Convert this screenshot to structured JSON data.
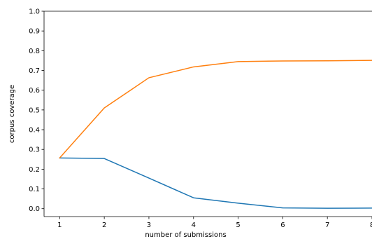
{
  "chart_data": {
    "type": "line",
    "title": "",
    "xlabel": "number of submissions",
    "ylabel": "corpus coverage",
    "xlim": [
      0.65,
      8.0
    ],
    "ylim": [
      -0.04,
      1.0
    ],
    "xticks": [
      1,
      2,
      3,
      4,
      5,
      6,
      7,
      8
    ],
    "xtick_labels": [
      "1",
      "2",
      "3",
      "4",
      "5",
      "6",
      "7",
      "8"
    ],
    "yticks": [
      0.0,
      0.1,
      0.2,
      0.3,
      0.4,
      0.5,
      0.6,
      0.7,
      0.8,
      0.9,
      1.0
    ],
    "ytick_labels": [
      "0.0",
      "0.1",
      "0.2",
      "0.3",
      "0.4",
      "0.5",
      "0.6",
      "0.7",
      "0.8",
      "0.9",
      "1.0"
    ],
    "grid": false,
    "legend": "none",
    "x": [
      1,
      2,
      3,
      4,
      5,
      6,
      7,
      8
    ],
    "series": [
      {
        "color": "#1f77b4",
        "values": [
          0.257,
          0.254,
          0.155,
          0.055,
          0.028,
          0.004,
          0.002,
          0.003
        ]
      },
      {
        "color": "#ff7f0e",
        "values": [
          0.257,
          0.51,
          0.663,
          0.718,
          0.745,
          0.748,
          0.749,
          0.751
        ]
      }
    ]
  }
}
